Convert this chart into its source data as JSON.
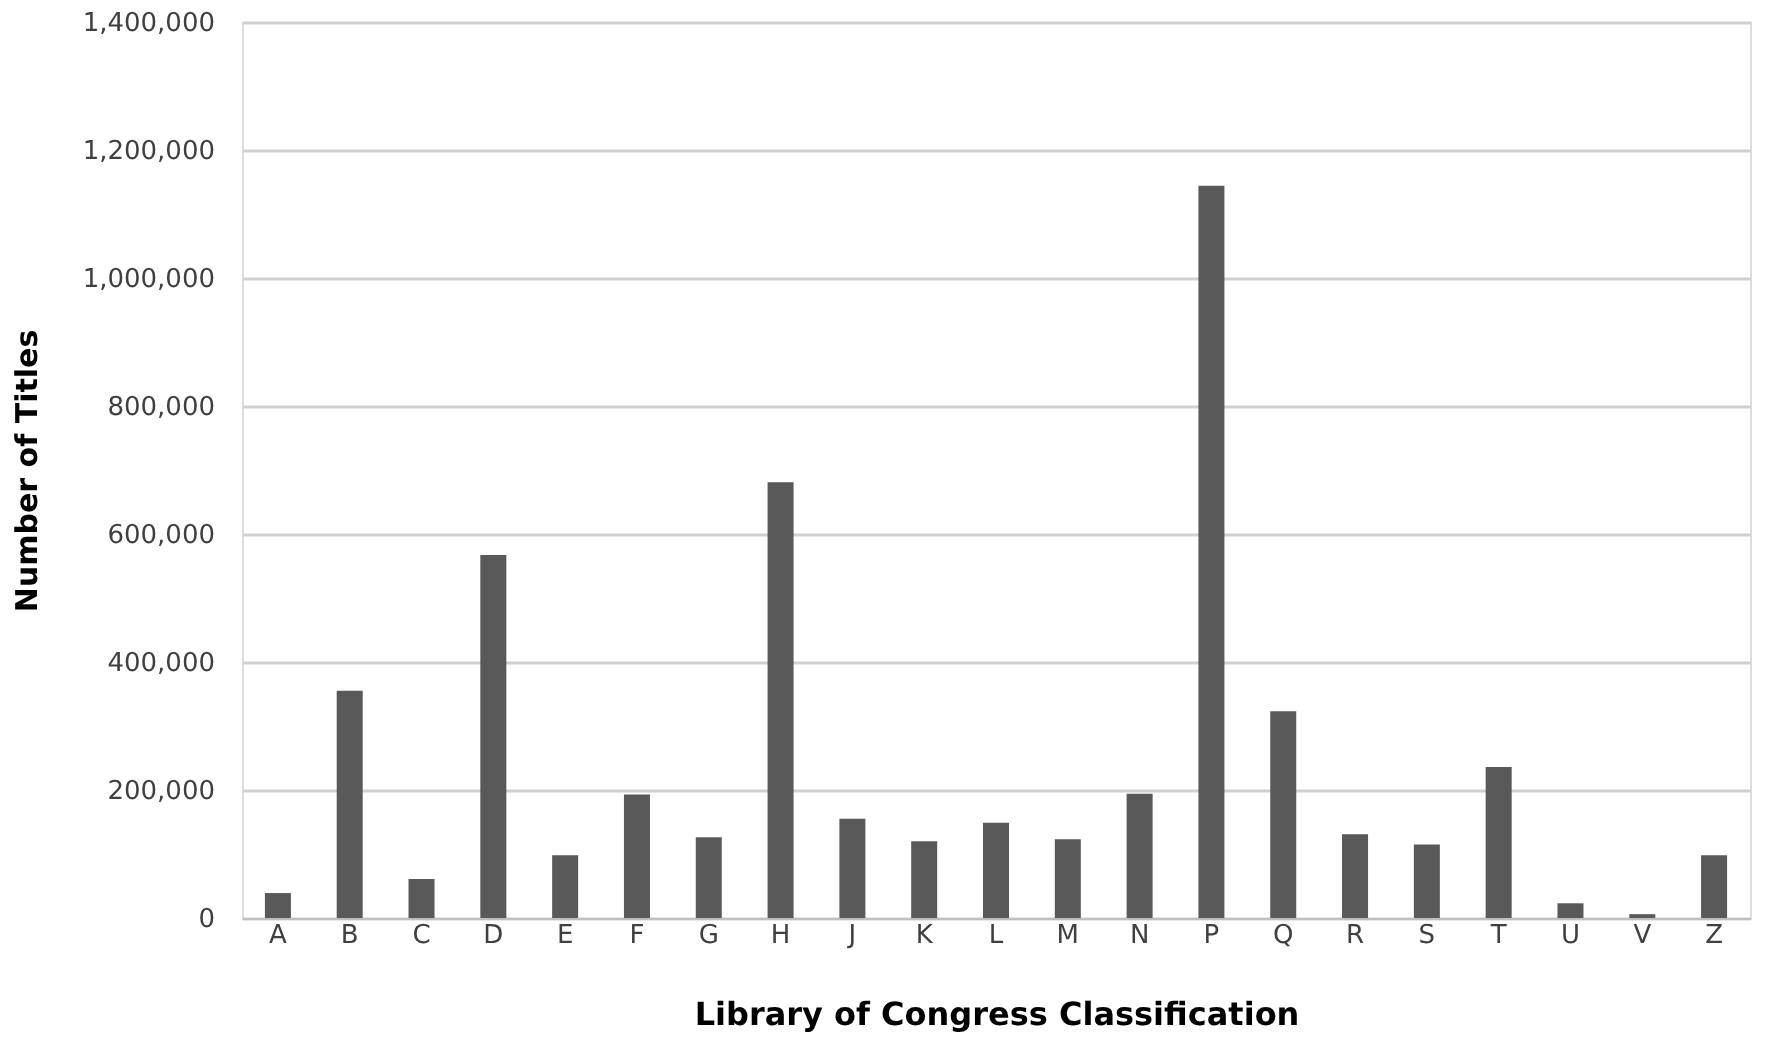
{
  "chart_data": {
    "type": "bar",
    "xlabel": "Library of Congress Classification",
    "ylabel": "Number of Titles",
    "categories": [
      "A",
      "B",
      "C",
      "D",
      "E",
      "F",
      "G",
      "H",
      "J",
      "K",
      "L",
      "M",
      "N",
      "P",
      "Q",
      "R",
      "S",
      "T",
      "U",
      "V",
      "Z"
    ],
    "values": [
      39000,
      355000,
      61000,
      567000,
      98000,
      193000,
      126000,
      681000,
      155000,
      120000,
      149000,
      123000,
      194000,
      1144000,
      323000,
      131000,
      115000,
      236000,
      23000,
      6000,
      98000
    ],
    "color": "#595959",
    "ylim": [
      0,
      1400000
    ],
    "yticks": [
      0,
      {
        "value": 200000,
        "label": "200,000"
      },
      {
        "value": 400000,
        "label": "400,000"
      },
      {
        "value": 600000,
        "label": "600,000"
      },
      {
        "value": 800000,
        "label": "800,000"
      },
      {
        "value": 1000000,
        "label": "1,000,000"
      },
      {
        "value": 1200000,
        "label": "1,200,000"
      },
      {
        "value": 1400000,
        "label": "1,400,000"
      }
    ],
    "grid": "y"
  }
}
